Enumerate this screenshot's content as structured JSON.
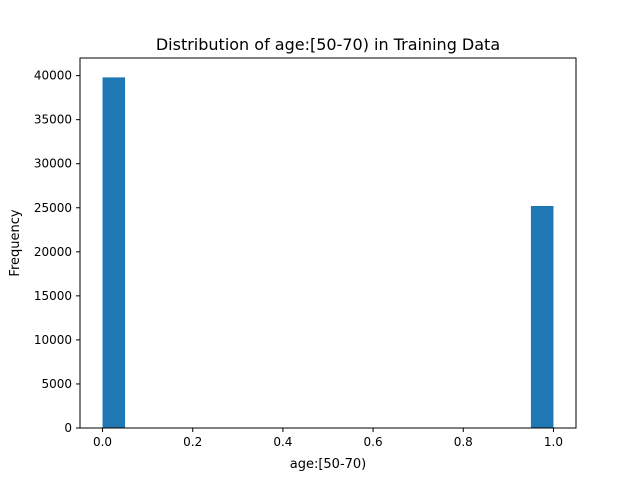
{
  "chart_data": {
    "type": "bar",
    "title": "Distribution of age:[50-70) in Training Data",
    "xlabel": "age:[50-70)",
    "ylabel": "Frequency",
    "xlim": [
      -0.05,
      1.05
    ],
    "ylim": [
      0,
      42000
    ],
    "x_ticks": [
      "0.0",
      "0.2",
      "0.4",
      "0.6",
      "0.8",
      "1.0"
    ],
    "y_ticks": [
      "0",
      "5000",
      "10000",
      "15000",
      "20000",
      "25000",
      "30000",
      "35000",
      "40000"
    ],
    "bins": [
      {
        "x0": 0.0,
        "x1": 0.05,
        "value": 39800
      },
      {
        "x0": 0.95,
        "x1": 1.0,
        "value": 25200
      }
    ],
    "bar_color": "#1f77b4",
    "grid": false,
    "legend": false
  }
}
